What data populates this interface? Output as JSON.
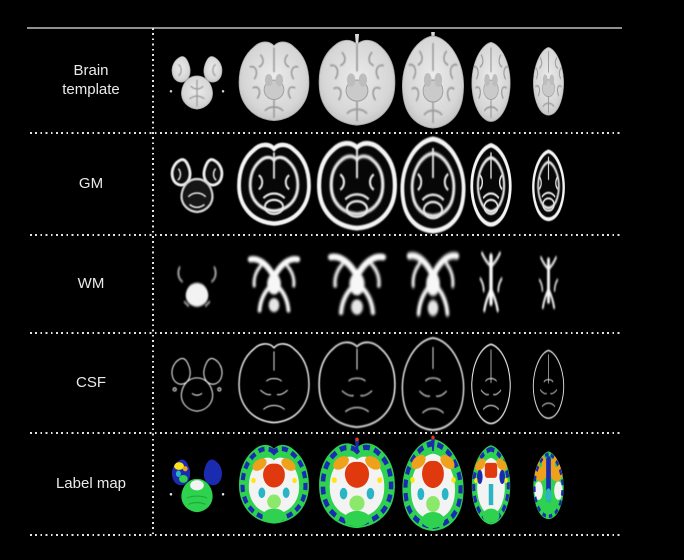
{
  "figure": {
    "background_color": "#000000",
    "divider_color": "#e3e3e3",
    "top_border_color": "#8f8f8f",
    "label_text_color": "#eaeaea",
    "slices_per_row": 6,
    "rows": [
      {
        "label": "Brain template",
        "style": "template"
      },
      {
        "label": "GM",
        "style": "gm"
      },
      {
        "label": "WM",
        "style": "wm"
      },
      {
        "label": "CSF",
        "style": "csf"
      },
      {
        "label": "Label map",
        "style": "label"
      }
    ],
    "label_map_palette": {
      "green": "#2ed24f",
      "light_green": "#8ce86a",
      "dark_blue": "#1b2bb0",
      "cyan": "#2ab5c4",
      "orange": "#f0a11c",
      "red": "#e0390e",
      "yellow": "#ffe417",
      "white": "#f3f3f3"
    },
    "grayscale": {
      "template_body": "#d6d6d6",
      "template_sulci": "#9a9a9a",
      "tissue_bright": "#f4f4f4",
      "tissue_dark_bg": "#070707"
    }
  }
}
